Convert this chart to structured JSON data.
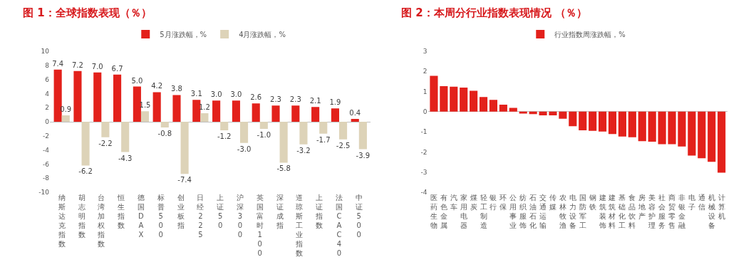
{
  "chart_data": [
    {
      "type": "bar",
      "title": "图 1：全球指数表现（％）",
      "categories": [
        "纳斯达克指数",
        "胡志明指数",
        "台湾加权指数",
        "恒生指数",
        "德国DAX",
        "标普500",
        "创业板指",
        "日经225",
        "上证50",
        "沪深300",
        "英国富时100",
        "深证成指",
        "道琼斯工业指数",
        "上证指数",
        "法国CAC40",
        "中证500"
      ],
      "series": [
        {
          "name": "5月涨跌幅，%",
          "color": "#e3211b",
          "values": [
            7.4,
            7.2,
            7.0,
            6.7,
            5.0,
            4.2,
            3.8,
            3.1,
            3.0,
            3.0,
            2.6,
            2.3,
            2.3,
            2.1,
            1.9,
            0.4
          ],
          "value_labels": [
            "7.4",
            "7.2",
            "7.0",
            "6.7",
            "5.0",
            "4.2",
            "3.8",
            "3.1",
            "3.0",
            "3.0",
            "2.6",
            "2.3",
            "2.3",
            "2.1",
            "1.9",
            "0.4"
          ]
        },
        {
          "name": "4月涨跌幅，%",
          "color": "#ddd3b8",
          "values": [
            0.9,
            -6.2,
            -2.2,
            -4.3,
            1.5,
            -0.8,
            -7.4,
            1.2,
            -1.2,
            -3.0,
            -1.0,
            -5.8,
            -3.2,
            -1.7,
            -2.5,
            -3.9
          ],
          "value_labels": [
            "0.9",
            "-6.2",
            "-2.2",
            "-4.3",
            "1.5",
            "-0.8",
            "-7.4",
            "1.2",
            "-1.2",
            "-3.0",
            "-1.0",
            "-5.8",
            "-3.2",
            "-1.7",
            "-2.5",
            "-3.9"
          ]
        }
      ],
      "ylim": [
        -10,
        10
      ],
      "yticks": [
        -10,
        -8,
        -6,
        -4,
        -2,
        0,
        2,
        4,
        6,
        8,
        10
      ],
      "legend": "top"
    },
    {
      "type": "bar",
      "title": "图 2：本周分行业指数表现情况 （％）",
      "categories": [
        "医药生物",
        "有色金属",
        "汽车",
        "家用电器",
        "煤炭",
        "轻工制造",
        "银行",
        "环保",
        "公用事业",
        "纺织服饰",
        "石油石化",
        "交通运输",
        "传媒",
        "农林牧渔",
        "电力设备",
        "国防军工",
        "钢铁",
        "建筑装饰",
        "建筑材料",
        "基础化工",
        "食品饮料",
        "房地产",
        "美容护理",
        "社会服务",
        "商贸零售",
        "非银金融",
        "电子",
        "通信",
        "机械设备",
        "计算机"
      ],
      "series": [
        {
          "name": "行业指数周涨跌幅，%",
          "color": "#e3211b",
          "values": [
            1.78,
            1.27,
            1.24,
            1.2,
            1.04,
            0.73,
            0.59,
            0.35,
            0.19,
            -0.09,
            -0.12,
            -0.18,
            -0.18,
            -0.35,
            -0.72,
            -0.92,
            -0.95,
            -0.99,
            -1.11,
            -1.23,
            -1.27,
            -1.46,
            -1.49,
            -1.61,
            -1.61,
            -1.73,
            -2.18,
            -2.31,
            -2.49,
            -3.03
          ]
        }
      ],
      "ylim": [
        -4,
        3
      ],
      "yticks": [
        -4,
        -3,
        -2,
        -1,
        0,
        1,
        2,
        3
      ],
      "legend": "top"
    }
  ]
}
